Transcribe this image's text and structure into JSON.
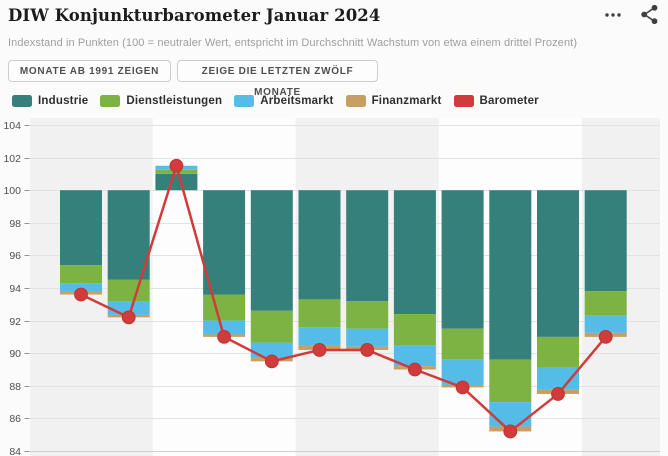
{
  "header": {
    "title": "DIW Konjunkturbarometer Januar 2024",
    "icons": [
      {
        "name": "ellipsis-menu-icon"
      },
      {
        "name": "share-icon"
      }
    ]
  },
  "subtitle": "Indexstand in Punkten (100 = neutraler Wert, entspricht im Durchschnitt Wachstum von etwa einem drittel Prozent)",
  "buttons": [
    {
      "label": "MONATE AB 1991 ZEIGEN"
    },
    {
      "label": "ZEIGE DIE LETZTEN ZWÖLF MONATE"
    }
  ],
  "legend": [
    {
      "label": "Industrie",
      "color": "#35807b"
    },
    {
      "label": "Dienstleistungen",
      "color": "#7db342"
    },
    {
      "label": "Arbeitsmarkt",
      "color": "#55bce8"
    },
    {
      "label": "Finanzmarkt",
      "color": "#c89e63"
    },
    {
      "label": "Barometer",
      "color": "#d23b3b"
    }
  ],
  "chart_data": {
    "type": "bar",
    "subtype": "stacked-deviation-bars-with-line",
    "baseline": 100,
    "ylim": [
      84,
      104
    ],
    "ytick_step": 2,
    "yticks": [
      84,
      86,
      88,
      90,
      92,
      94,
      96,
      98,
      100,
      102,
      104
    ],
    "grid": true,
    "x_tick_labels_visible": false,
    "legend_position": "top",
    "n_bars": 12,
    "series": [
      {
        "name": "Industrie",
        "color": "#35807b",
        "values": [
          -4.6,
          -5.5,
          1.0,
          -6.4,
          -7.4,
          -6.7,
          -6.8,
          -7.6,
          -8.5,
          -10.4,
          -9.0,
          -6.2
        ]
      },
      {
        "name": "Dienstleistungen",
        "color": "#7db342",
        "values": [
          -1.1,
          -1.3,
          0.25,
          -1.6,
          -1.95,
          -1.7,
          -1.7,
          -1.9,
          -1.9,
          -2.6,
          -1.9,
          -1.5
        ]
      },
      {
        "name": "Arbeitsmarkt",
        "color": "#55bce8",
        "values": [
          -0.55,
          -0.85,
          0.25,
          -0.85,
          -0.95,
          -1.1,
          -1.1,
          -1.3,
          -1.55,
          -1.5,
          -1.35,
          -1.05
        ]
      },
      {
        "name": "Finanzmarkt",
        "color": "#c89e63",
        "values": [
          -0.15,
          -0.15,
          0.0,
          -0.15,
          -0.2,
          -0.3,
          -0.2,
          -0.2,
          -0.15,
          -0.3,
          -0.25,
          -0.25
        ]
      }
    ],
    "line_series": {
      "name": "Barometer",
      "color": "#d23b3b",
      "point_stroke": "#bc3434",
      "values": [
        93.6,
        92.2,
        101.5,
        91.0,
        89.5,
        90.2,
        90.2,
        89.0,
        87.9,
        85.2,
        87.5,
        91.0
      ]
    },
    "background_bands": {
      "gray": "#f1f1f1",
      "white": "#fdfdfd",
      "groups": [
        {
          "bars": [
            0,
            1
          ],
          "shade": "gray"
        },
        {
          "bars": [
            2,
            4
          ],
          "shade": "white"
        },
        {
          "bars": [
            5,
            7
          ],
          "shade": "gray"
        },
        {
          "bars": [
            8,
            10
          ],
          "shade": "white"
        },
        {
          "bars": [
            11,
            11
          ],
          "shade": "gray"
        }
      ]
    },
    "gridline_color": "#e2e2e2",
    "axis_label_color": "#4f4f4f"
  }
}
